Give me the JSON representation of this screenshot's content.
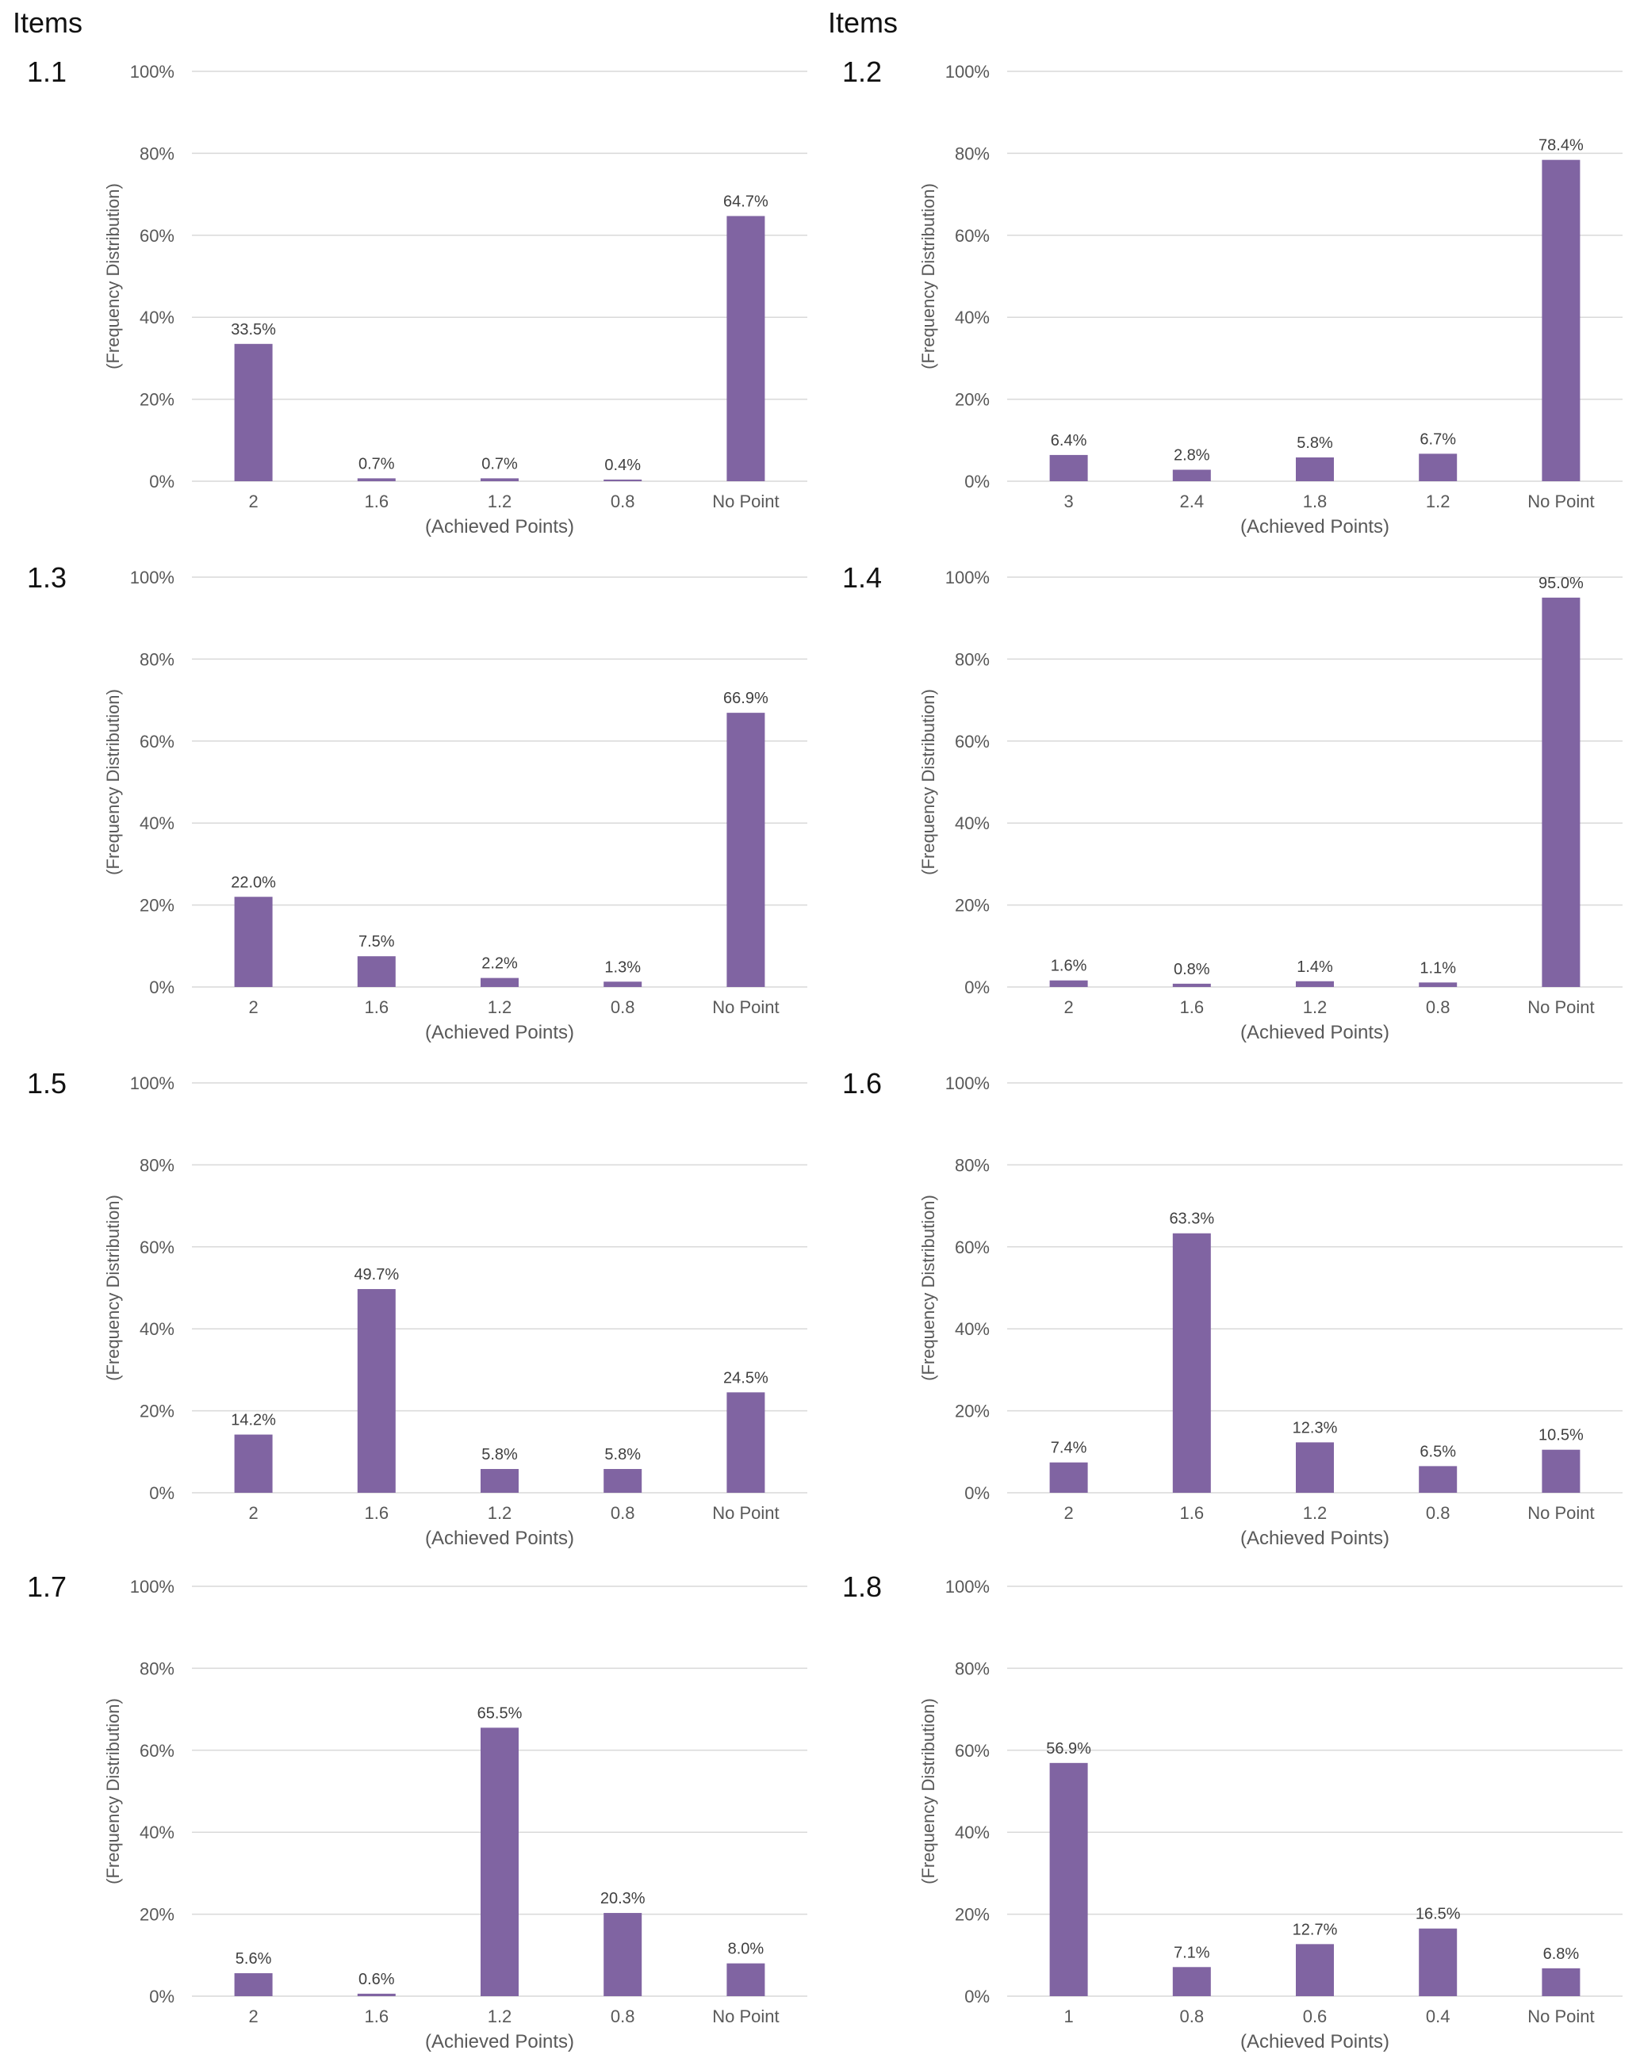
{
  "header": {
    "left_title": "Items",
    "right_title": "Items"
  },
  "style": {
    "bar_color": "#8064a2",
    "grid_color": "#d9d9d9",
    "axis_text_color": "#595959"
  },
  "chart_data": [
    {
      "id": "1.1",
      "type": "bar",
      "xlabel": "(Achieved Points)",
      "ylabel": "(Frequency Distribution)",
      "ylim": [
        0,
        100
      ],
      "yticks": [
        "0%",
        "20%",
        "40%",
        "60%",
        "80%",
        "100%"
      ],
      "categories": [
        "2",
        "1.6",
        "1.2",
        "0.8",
        "No Point"
      ],
      "values": [
        33.5,
        0.7,
        0.7,
        0.4,
        64.7
      ],
      "labels": [
        "33.5%",
        "0.7%",
        "0.7%",
        "0.4%",
        "64.7%"
      ]
    },
    {
      "id": "1.2",
      "type": "bar",
      "xlabel": "(Achieved Points)",
      "ylabel": "(Frequency Distribution)",
      "ylim": [
        0,
        100
      ],
      "yticks": [
        "0%",
        "20%",
        "40%",
        "60%",
        "80%",
        "100%"
      ],
      "categories": [
        "3",
        "2.4",
        "1.8",
        "1.2",
        "No Point"
      ],
      "values": [
        6.4,
        2.8,
        5.8,
        6.7,
        78.4
      ],
      "labels": [
        "6.4%",
        "2.8%",
        "5.8%",
        "6.7%",
        "78.4%"
      ]
    },
    {
      "id": "1.3",
      "type": "bar",
      "xlabel": "(Achieved Points)",
      "ylabel": "(Frequency Distribution)",
      "ylim": [
        0,
        100
      ],
      "yticks": [
        "0%",
        "20%",
        "40%",
        "60%",
        "80%",
        "100%"
      ],
      "categories": [
        "2",
        "1.6",
        "1.2",
        "0.8",
        "No Point"
      ],
      "values": [
        22.0,
        7.5,
        2.2,
        1.3,
        66.9
      ],
      "labels": [
        "22.0%",
        "7.5%",
        "2.2%",
        "1.3%",
        "66.9%"
      ]
    },
    {
      "id": "1.4",
      "type": "bar",
      "xlabel": "(Achieved Points)",
      "ylabel": "(Frequency Distribution)",
      "ylim": [
        0,
        100
      ],
      "yticks": [
        "0%",
        "20%",
        "40%",
        "60%",
        "80%",
        "100%"
      ],
      "categories": [
        "2",
        "1.6",
        "1.2",
        "0.8",
        "No Point"
      ],
      "values": [
        1.6,
        0.8,
        1.4,
        1.1,
        95.0
      ],
      "labels": [
        "1.6%",
        "0.8%",
        "1.4%",
        "1.1%",
        "95.0%"
      ]
    },
    {
      "id": "1.5",
      "type": "bar",
      "xlabel": "(Achieved Points)",
      "ylabel": "(Frequency Distribution)",
      "ylim": [
        0,
        100
      ],
      "yticks": [
        "0%",
        "20%",
        "40%",
        "60%",
        "80%",
        "100%"
      ],
      "categories": [
        "2",
        "1.6",
        "1.2",
        "0.8",
        "No Point"
      ],
      "values": [
        14.2,
        49.7,
        5.8,
        5.8,
        24.5
      ],
      "labels": [
        "14.2%",
        "49.7%",
        "5.8%",
        "5.8%",
        "24.5%"
      ]
    },
    {
      "id": "1.6",
      "type": "bar",
      "xlabel": "(Achieved Points)",
      "ylabel": "(Frequency Distribution)",
      "ylim": [
        0,
        100
      ],
      "yticks": [
        "0%",
        "20%",
        "40%",
        "60%",
        "80%",
        "100%"
      ],
      "categories": [
        "2",
        "1.6",
        "1.2",
        "0.8",
        "No Point"
      ],
      "values": [
        7.4,
        63.3,
        12.3,
        6.5,
        10.5
      ],
      "labels": [
        "7.4%",
        "63.3%",
        "12.3%",
        "6.5%",
        "10.5%"
      ]
    },
    {
      "id": "1.7",
      "type": "bar",
      "xlabel": "(Achieved Points)",
      "ylabel": "(Frequency Distribution)",
      "ylim": [
        0,
        100
      ],
      "yticks": [
        "0%",
        "20%",
        "40%",
        "60%",
        "80%",
        "100%"
      ],
      "categories": [
        "2",
        "1.6",
        "1.2",
        "0.8",
        "No Point"
      ],
      "values": [
        5.6,
        0.6,
        65.5,
        20.3,
        8.0
      ],
      "labels": [
        "5.6%",
        "0.6%",
        "65.5%",
        "20.3%",
        "8.0%"
      ]
    },
    {
      "id": "1.8",
      "type": "bar",
      "xlabel": "(Achieved Points)",
      "ylabel": "(Frequency Distribution)",
      "ylim": [
        0,
        100
      ],
      "yticks": [
        "0%",
        "20%",
        "40%",
        "60%",
        "80%",
        "100%"
      ],
      "categories": [
        "1",
        "0.8",
        "0.6",
        "0.4",
        "No Point"
      ],
      "values": [
        56.9,
        7.1,
        12.7,
        16.5,
        6.8
      ],
      "labels": [
        "56.9%",
        "7.1%",
        "12.7%",
        "16.5%",
        "6.8%"
      ]
    }
  ]
}
